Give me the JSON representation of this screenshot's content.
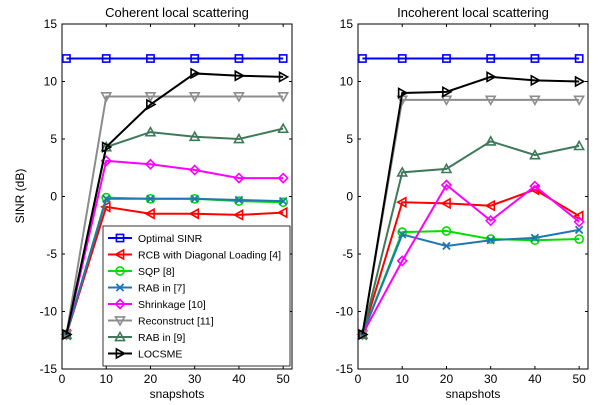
{
  "colors": {
    "Optimal SINR": "#0000ff",
    "RCB with Diagonal Loading [4]": "#ff0000",
    "SQP [8]": "#00dd00",
    "RAB in [7]": "#1f77b4",
    "Shrinkage [10]": "#ff00ff",
    "Reconstruct [11]": "#8c8c8c",
    "RAB in [9]": "#3d7a5a",
    "LOCSME": "#000000"
  },
  "markers": {
    "Optimal SINR": "square",
    "RCB with Diagonal Loading [4]": "triangle-left",
    "SQP [8]": "circle",
    "RAB in [7]": "x",
    "Shrinkage [10]": "diamond",
    "Reconstruct [11]": "triangle-down",
    "RAB in [9]": "triangle-up",
    "LOCSME": "triangle-right"
  },
  "chart_data": [
    {
      "type": "line",
      "title": "Coherent local scattering",
      "xlabel": "snapshots",
      "ylabel": "SINR (dB)",
      "xlim": [
        0,
        52
      ],
      "ylim": [
        -15,
        15
      ],
      "xticks": [
        0,
        10,
        20,
        30,
        40,
        50
      ],
      "yticks": [
        -15,
        -10,
        -5,
        0,
        5,
        10,
        15
      ],
      "grid": false,
      "legend": "bottom-right",
      "x": [
        1,
        10,
        20,
        30,
        40,
        50
      ],
      "series": [
        {
          "name": "Optimal SINR",
          "values": [
            12,
            12,
            12,
            12,
            12,
            12
          ]
        },
        {
          "name": "RCB with Diagonal Loading [4]",
          "values": [
            -12,
            -0.9,
            -1.5,
            -1.5,
            -1.6,
            -1.4
          ]
        },
        {
          "name": "SQP [8]",
          "values": [
            -12,
            -0.1,
            -0.2,
            -0.2,
            -0.4,
            -0.5
          ]
        },
        {
          "name": "RAB in [7]",
          "values": [
            -12,
            -0.2,
            -0.2,
            -0.2,
            -0.3,
            -0.4
          ]
        },
        {
          "name": "Shrinkage [10]",
          "values": [
            -12,
            3.1,
            2.8,
            2.3,
            1.6,
            1.6
          ]
        },
        {
          "name": "Reconstruct [11]",
          "values": [
            -12,
            8.7,
            8.7,
            8.7,
            8.7,
            8.7
          ]
        },
        {
          "name": "RAB in [9]",
          "values": [
            -12,
            4.3,
            5.6,
            5.2,
            5.0,
            5.9
          ]
        },
        {
          "name": "LOCSME",
          "values": [
            -12,
            4.3,
            8.0,
            10.7,
            10.5,
            10.4
          ]
        }
      ]
    },
    {
      "type": "line",
      "title": "Incoherent local scattering",
      "xlabel": "snapshots",
      "ylabel": "",
      "xlim": [
        0,
        52
      ],
      "ylim": [
        -15,
        15
      ],
      "xticks": [
        0,
        10,
        20,
        30,
        40,
        50
      ],
      "yticks": [
        -15,
        -10,
        -5,
        0,
        5,
        10,
        15
      ],
      "grid": false,
      "x": [
        1,
        10,
        20,
        30,
        40,
        50
      ],
      "series": [
        {
          "name": "Optimal SINR",
          "values": [
            12,
            12,
            12,
            12,
            12,
            12
          ]
        },
        {
          "name": "RCB with Diagonal Loading [4]",
          "values": [
            -12,
            -0.5,
            -0.6,
            -0.8,
            0.6,
            -1.7
          ]
        },
        {
          "name": "SQP [8]",
          "values": [
            -12,
            -3.1,
            -3.0,
            -3.7,
            -3.8,
            -3.7
          ]
        },
        {
          "name": "RAB in [7]",
          "values": [
            -12,
            -3.3,
            -4.3,
            -3.8,
            -3.6,
            -2.9
          ]
        },
        {
          "name": "Shrinkage [10]",
          "values": [
            -12,
            -5.6,
            1.0,
            -2.1,
            0.9,
            -2.2
          ]
        },
        {
          "name": "Reconstruct [11]",
          "values": [
            -12,
            8.4,
            8.4,
            8.4,
            8.4,
            8.4
          ]
        },
        {
          "name": "RAB in [9]",
          "values": [
            -12,
            2.1,
            2.4,
            4.8,
            3.6,
            4.4
          ]
        },
        {
          "name": "LOCSME",
          "values": [
            -12,
            9.0,
            9.1,
            10.4,
            10.1,
            10.0
          ]
        }
      ]
    }
  ]
}
